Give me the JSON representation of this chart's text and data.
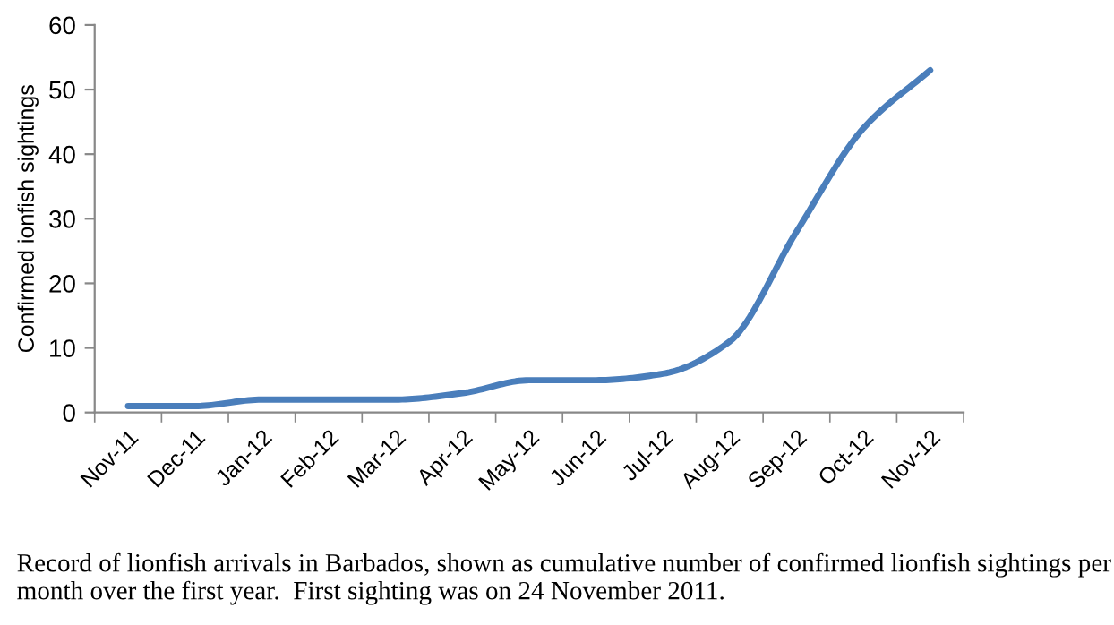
{
  "chart_data": {
    "type": "line",
    "ylabel": "Confirmed ionfish sightings",
    "categories": [
      "Nov-11",
      "Dec-11",
      "Jan-12",
      "Feb-12",
      "Mar-12",
      "Apr-12",
      "May-12",
      "Jun-12",
      "Jul-12",
      "Aug-12",
      "Sep-12",
      "Oct-12",
      "Nov-12"
    ],
    "series": [
      {
        "color": "#4a7ebb",
        "values": [
          1,
          1,
          2,
          2,
          2,
          3,
          5,
          5,
          6,
          11,
          28,
          44,
          53
        ]
      }
    ],
    "ylim": [
      0,
      60
    ],
    "yticks": [
      0,
      10,
      20,
      30,
      40,
      50,
      60
    ],
    "grid": false,
    "legend": false,
    "marker": "none",
    "line_style": "solid",
    "annotations": [
      "Record of lionfish arrivals in Barbados, shown as cumulative number of confirmed lionfish sightings per month over the first year.  First sighting was on 24 November 2011."
    ]
  }
}
